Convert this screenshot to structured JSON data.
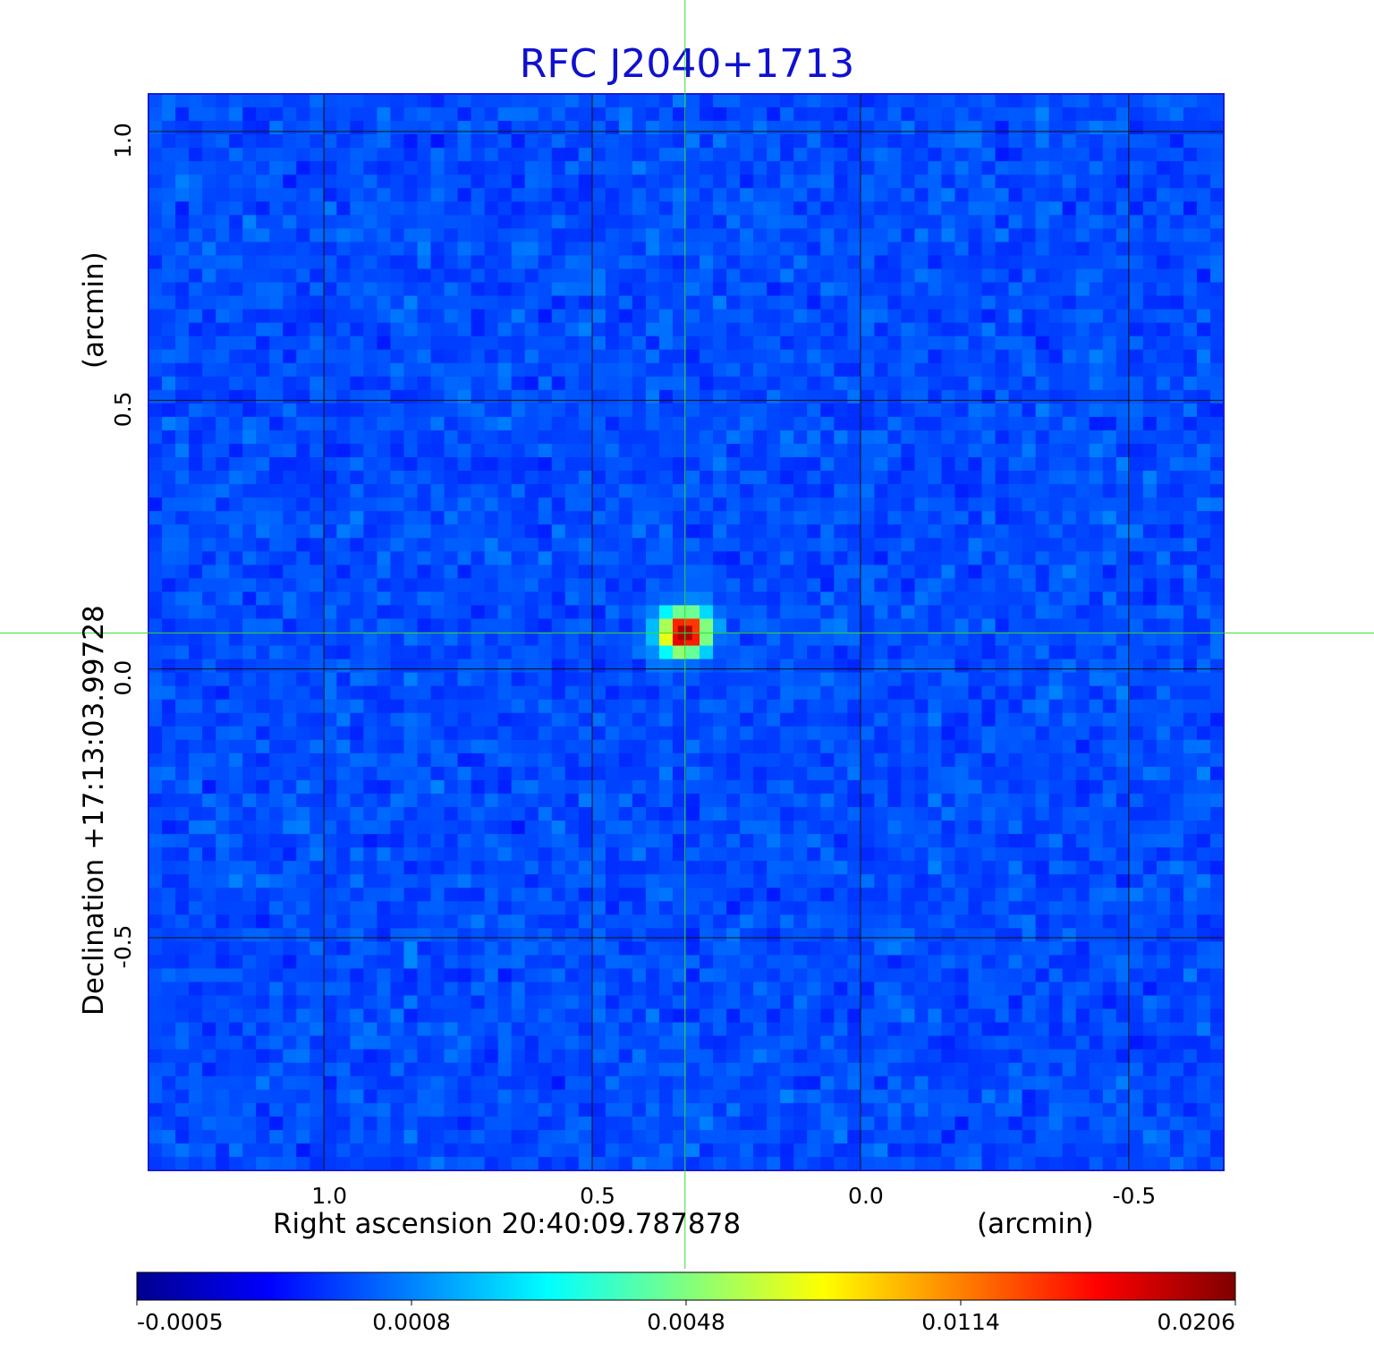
{
  "chart_data": {
    "type": "heatmap",
    "title": "RFC J2040+1713",
    "xlabel": "Right ascension  20:40:09.787878",
    "xunit": "(arcmin)",
    "ylabel": "Declination  +17:13:03.99728",
    "yunit": "(arcmin)",
    "x_ticks": [
      {
        "value": 1.0,
        "label": "1.0"
      },
      {
        "value": 0.5,
        "label": "0.5"
      },
      {
        "value": 0.0,
        "label": "0.0"
      },
      {
        "value": -0.5,
        "label": "-0.5"
      }
    ],
    "y_ticks": [
      {
        "value": 1.0,
        "label": "1.0"
      },
      {
        "value": 0.5,
        "label": "0.5"
      },
      {
        "value": 0.0,
        "label": "0.0"
      },
      {
        "value": -0.5,
        "label": "-0.5"
      }
    ],
    "xlim": [
      1.327,
      -0.677
    ],
    "ylim": [
      -0.933,
      1.07
    ],
    "grid": true,
    "colormap": "jet",
    "colorbar_ticks": [
      "-0.0005",
      "0.0008",
      "0.0048",
      "0.0114",
      "0.0206"
    ],
    "value_range": [
      -0.0005,
      0.0206
    ],
    "source": {
      "x": 0.327,
      "y": 0.067,
      "peak": 0.0206
    },
    "crosshair": {
      "x": 0.327,
      "y": 0.067,
      "color": "#33dd33"
    }
  }
}
